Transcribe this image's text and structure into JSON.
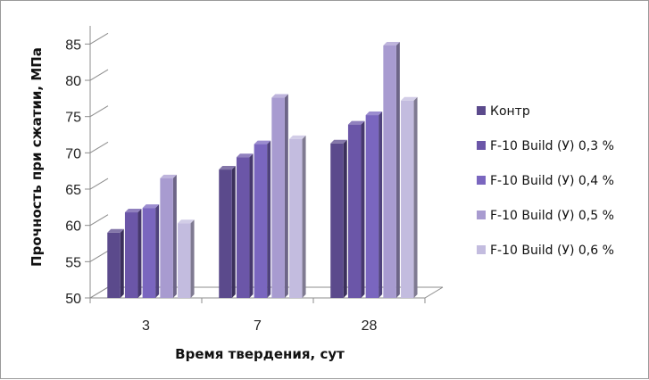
{
  "chart_data": {
    "type": "bar",
    "categories": [
      "3",
      "7",
      "28"
    ],
    "series": [
      {
        "name": "Контр",
        "values": [
          59.0,
          67.7,
          71.3
        ],
        "color": "#5b4a8c"
      },
      {
        "name": "F-10 Build (У) 0,3 %",
        "values": [
          61.8,
          69.4,
          73.9
        ],
        "color": "#6b56a8"
      },
      {
        "name": "F-10 Build (У) 0,4 %",
        "values": [
          62.4,
          71.2,
          75.2
        ],
        "color": "#7a66bf"
      },
      {
        "name": "F-10 Build (У) 0,5 %",
        "values": [
          66.5,
          77.6,
          84.8
        ],
        "color": "#a89bd0"
      },
      {
        "name": "F-10 Build (У) 0,6 %",
        "values": [
          60.3,
          71.9,
          77.2
        ],
        "color": "#c3bcdf"
      }
    ],
    "yticks": [
      "50",
      "55",
      "60",
      "65",
      "70",
      "75",
      "80",
      "85"
    ],
    "ylim": [
      50,
      87.5
    ],
    "xlabel": "Время твердения, сут",
    "ylabel": "Прочность при сжатии, МПа",
    "grid": false,
    "legend": "right"
  }
}
